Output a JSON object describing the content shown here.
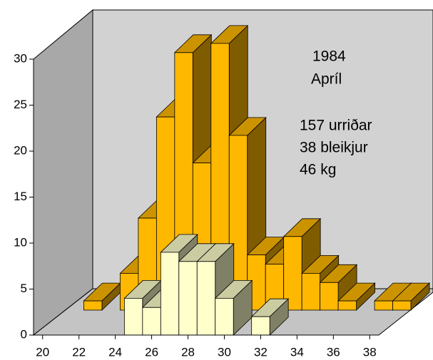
{
  "chart_data": {
    "type": "bar3d",
    "annotations": [
      "1984",
      "Apríl",
      "157 urriðar",
      "38 bleikjur",
      "46 kg"
    ],
    "categories": [
      20,
      21,
      22,
      23,
      24,
      25,
      26,
      27,
      28,
      29,
      30,
      31,
      32,
      33,
      34,
      35,
      36,
      37,
      38
    ],
    "series": [
      {
        "color": "#ffb800",
        "values": [
          null,
          1,
          null,
          4,
          10,
          21,
          28,
          16,
          29,
          19,
          6,
          5,
          8,
          4,
          3,
          1,
          null,
          1,
          1
        ]
      },
      {
        "color": "#ffffcc",
        "values": [
          null,
          null,
          null,
          null,
          null,
          4,
          3,
          9,
          8,
          8,
          4,
          null,
          2,
          null,
          null,
          null,
          null,
          null,
          null
        ]
      }
    ],
    "xlim": [
      19.5,
      38.5
    ],
    "xticks": [
      20,
      22,
      24,
      26,
      28,
      30,
      32,
      34,
      36,
      38
    ],
    "ylim": [
      0,
      30
    ],
    "yticks": [
      0,
      5,
      10,
      15,
      20,
      25,
      30
    ]
  }
}
